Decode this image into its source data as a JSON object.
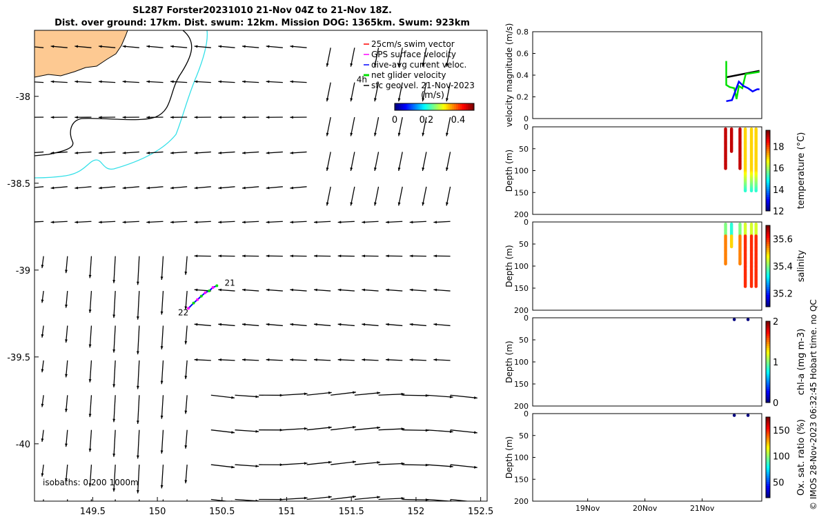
{
  "title_line1": "SL287 Forster20231010 21-Nov 04Z to 21-Nov 18Z.",
  "title_line2": "Dist. over ground: 17km. Dist. swum: 12km. Mission DOG: 1365km. Swum: 923km",
  "copyright": "© IMOS 28-Nov-2023 06:32:45 Hobart time. no QC",
  "colors": {
    "land": "#fdc992",
    "coast_isobath": "#000000",
    "isobath_200": "#33e0e8",
    "swim_vector": "#ff0000",
    "gps_surface": "#ff00ff",
    "dive_avg": "#0000ff",
    "net_glider": "#00e000",
    "sfc_geo": "#000000"
  },
  "chart_data": [
    {
      "type": "quiver-map",
      "xlim": [
        149.05,
        152.55
      ],
      "ylim": [
        -40.33,
        -37.62
      ],
      "xticks": [
        "149.5",
        "150",
        "150.5",
        "151",
        "151.5",
        "152",
        "152.5"
      ],
      "yticks": [
        "-38",
        "-38.5",
        "-39",
        "-39.5",
        "-40"
      ],
      "legend": {
        "placement": "top-right",
        "items": [
          {
            "label": "25cm/s swim vector",
            "color": "#ff0000"
          },
          {
            "label": "GPS surface velocity",
            "color": "#ff00ff"
          },
          {
            "label": "dive-avg current veloc.",
            "color": "#0000ff"
          },
          {
            "label": "net glider velocity",
            "color": "#00e000"
          },
          {
            "label": "sfc geo.vel. 21-Nov-2023",
            "color": "#000000"
          }
        ]
      },
      "colorbar": {
        "label": "(m/s)",
        "ticks": [
          "0",
          "0.2",
          "0.4"
        ],
        "range": [
          0,
          0.5
        ]
      },
      "annotations": [
        {
          "text": "4h",
          "lon": 151.54,
          "lat": -37.92
        },
        {
          "text": "21",
          "lon": 150.52,
          "lat": -39.09
        },
        {
          "text": "22",
          "lon": 150.16,
          "lat": -39.26
        }
      ],
      "isobath_note": "isobaths: 0   200  1000m",
      "glider_track": {
        "lon": [
          150.24,
          150.28,
          150.31,
          150.34,
          150.37,
          150.4,
          150.43,
          150.46
        ],
        "lat": [
          -39.22,
          -39.19,
          -39.17,
          -39.15,
          -39.13,
          -39.12,
          -39.1,
          -39.09
        ]
      },
      "grid": "geostrophic velocity vectors on 0.1-degree-spaced grid (approx.)"
    },
    {
      "type": "line",
      "ylabel": "velocity magnitude (m/s)",
      "ylim": [
        0,
        0.8
      ],
      "yticks": [
        "0",
        "0.2",
        "0.4",
        "0.6",
        "0.8"
      ],
      "xlim": [
        0,
        1
      ],
      "series": [
        {
          "color": "#000000",
          "x": [
            0.845,
            0.99
          ],
          "y": [
            0.38,
            0.44
          ]
        },
        {
          "color": "#00e000",
          "x": [
            0.845,
            0.845,
            0.86,
            0.88,
            0.89,
            0.9,
            0.915,
            0.93,
            0.99
          ],
          "y": [
            0.53,
            0.31,
            0.29,
            0.28,
            0.18,
            0.3,
            0.28,
            0.41,
            0.43
          ]
        },
        {
          "color": "#0000ff",
          "x": [
            0.845,
            0.87,
            0.9,
            0.92,
            0.94,
            0.96,
            0.98,
            0.99
          ],
          "y": [
            0.16,
            0.17,
            0.34,
            0.3,
            0.28,
            0.25,
            0.27,
            0.27
          ]
        }
      ]
    },
    {
      "type": "scatter-section",
      "ylabel": "Depth (m)",
      "cbar_label": "temperature (°C)",
      "cbar_ticks": [
        "12",
        "14",
        "16",
        "18"
      ],
      "cbar_range": [
        12,
        19.5
      ],
      "ylim": [
        200,
        0
      ],
      "profiles": [
        {
          "x": 0.842,
          "top": 5,
          "bottom": 97,
          "value": 19
        },
        {
          "x": 0.868,
          "top": 5,
          "bottom": 58,
          "value": 19
        },
        {
          "x": 0.905,
          "top": 5,
          "bottom": 97,
          "value": 19
        },
        {
          "x": 0.928,
          "top": 5,
          "bottom": 148,
          "value": 17
        },
        {
          "x": 0.955,
          "top": 5,
          "bottom": 148,
          "value": 17
        },
        {
          "x": 0.975,
          "top": 5,
          "bottom": 148,
          "value": 17
        }
      ]
    },
    {
      "type": "scatter-section",
      "ylabel": "Depth (m)",
      "cbar_label": "salinity",
      "cbar_ticks": [
        "35.2",
        "35.4",
        "35.6"
      ],
      "cbar_range": [
        35.1,
        35.7
      ],
      "ylim": [
        200,
        0
      ],
      "profiles": [
        {
          "x": 0.842,
          "top": 5,
          "bottom": 97,
          "value": 35.55
        },
        {
          "x": 0.868,
          "top": 5,
          "bottom": 58,
          "value": 35.5
        },
        {
          "x": 0.905,
          "top": 5,
          "bottom": 97,
          "value": 35.55
        },
        {
          "x": 0.928,
          "top": 5,
          "bottom": 148,
          "value": 35.6
        },
        {
          "x": 0.955,
          "top": 5,
          "bottom": 148,
          "value": 35.6
        },
        {
          "x": 0.975,
          "top": 5,
          "bottom": 148,
          "value": 35.6
        }
      ]
    },
    {
      "type": "scatter-section",
      "ylabel": "Depth (m)",
      "cbar_label": "chl-a (mg m-3)",
      "cbar_ticks": [
        "0",
        "1",
        "2"
      ],
      "cbar_range": [
        0,
        2
      ],
      "ylim": [
        200,
        0
      ],
      "points": [
        {
          "x": 0.88,
          "depth": 4,
          "value": 0
        },
        {
          "x": 0.94,
          "depth": 4,
          "value": 0
        }
      ]
    },
    {
      "type": "scatter-section",
      "ylabel": "Depth (m)",
      "cbar_label": "Ox. sat. ratio (%)",
      "cbar_ticks": [
        "50",
        "100",
        "150"
      ],
      "cbar_range": [
        20,
        175
      ],
      "ylim": [
        200,
        0
      ],
      "points": [
        {
          "x": 0.88,
          "depth": 4,
          "value": 20
        },
        {
          "x": 0.94,
          "depth": 4,
          "value": 20
        }
      ],
      "xticks": [
        "19Nov",
        "20Nov",
        "21Nov"
      ]
    }
  ]
}
